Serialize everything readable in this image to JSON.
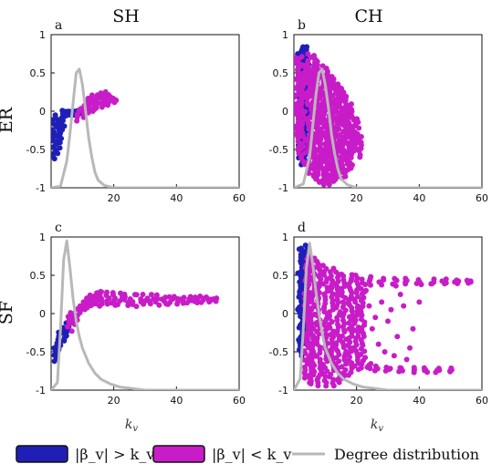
{
  "columns": [
    "SH",
    "CH"
  ],
  "rows": [
    "ER",
    "SF"
  ],
  "x_axis_label": "k_v",
  "legend": [
    {
      "label": "|β_v| > k_v",
      "color": "#1f1fb8",
      "kind": "swatch"
    },
    {
      "label": "|β_v| < k_v",
      "color": "#c81cc8",
      "kind": "swatch"
    },
    {
      "label": "Degree distribution",
      "color": "#b8b8b8",
      "kind": "line"
    }
  ],
  "chart_data": [
    {
      "panel": "a",
      "type": "scatter",
      "network": "ER",
      "model": "SH",
      "xlim": [
        0,
        60
      ],
      "ylim": [
        -1,
        1
      ],
      "x_ticks": [
        20,
        40,
        60
      ],
      "y_ticks": [
        1,
        0.5,
        0,
        -0.5,
        -1
      ],
      "series": [
        {
          "name": "|β_v| > k_v",
          "color": "#1f1fb8",
          "bands": [
            [
              1,
              -0.62,
              -0.12
            ],
            [
              2,
              -0.55,
              -0.05
            ],
            [
              3,
              -0.4,
              0.0
            ],
            [
              4,
              -0.2,
              0.0
            ],
            [
              5,
              -0.05,
              0.0
            ],
            [
              6,
              -0.05,
              0.0
            ],
            [
              7,
              -0.04,
              0.0
            ],
            [
              8,
              -0.04,
              0.0
            ],
            [
              9,
              -0.03,
              0.0
            ]
          ]
        },
        {
          "name": "|β_v| < k_v",
          "color": "#c81cc8",
          "bands": [
            [
              9,
              -0.12,
              0.04
            ],
            [
              10,
              -0.08,
              0.08
            ],
            [
              11,
              -0.04,
              0.12
            ],
            [
              12,
              -0.02,
              0.16
            ],
            [
              13,
              0.0,
              0.2
            ],
            [
              14,
              0.02,
              0.2
            ],
            [
              15,
              0.04,
              0.22
            ],
            [
              16,
              0.06,
              0.24
            ],
            [
              17,
              0.08,
              0.26
            ],
            [
              18,
              0.08,
              0.22
            ],
            [
              19,
              0.1,
              0.18
            ],
            [
              20,
              0.12,
              0.16
            ]
          ]
        },
        {
          "name": "Degree distribution",
          "color": "#b8b8b8",
          "type": "line",
          "points": [
            [
              0,
              -1
            ],
            [
              3,
              -0.98
            ],
            [
              5,
              -0.65
            ],
            [
              6,
              -0.3
            ],
            [
              7,
              0.1
            ],
            [
              8,
              0.5
            ],
            [
              9,
              0.55
            ],
            [
              10,
              0.35
            ],
            [
              11,
              0.0
            ],
            [
              12,
              -0.35
            ],
            [
              13,
              -0.6
            ],
            [
              14,
              -0.8
            ],
            [
              15,
              -0.9
            ],
            [
              17,
              -0.97
            ],
            [
              20,
              -1
            ],
            [
              60,
              -1
            ]
          ]
        }
      ]
    },
    {
      "panel": "b",
      "type": "scatter",
      "network": "ER",
      "model": "CH",
      "xlim": [
        0,
        60
      ],
      "ylim": [
        -1,
        1
      ],
      "x_ticks": [
        20,
        40,
        60
      ],
      "y_ticks": [
        1,
        0.5,
        0,
        -0.5,
        -1
      ],
      "series": [
        {
          "name": "|β_v| > k_v",
          "color": "#1f1fb8",
          "bands": [
            [
              2,
              -0.6,
              0.75
            ],
            [
              3,
              -0.7,
              0.85
            ],
            [
              4,
              -0.5,
              0.85
            ]
          ]
        },
        {
          "name": "|β_v| < k_v",
          "color": "#c81cc8",
          "bands": [
            [
              1,
              -0.35,
              0.7
            ],
            [
              2,
              -0.55,
              0.72
            ],
            [
              3,
              -0.7,
              0.6
            ],
            [
              5,
              -0.8,
              0.75
            ],
            [
              6,
              -0.85,
              0.72
            ],
            [
              7,
              -0.88,
              0.68
            ],
            [
              8,
              -0.92,
              0.65
            ],
            [
              9,
              -0.95,
              0.6
            ],
            [
              10,
              -0.95,
              0.55
            ],
            [
              11,
              -0.95,
              0.5
            ],
            [
              12,
              -0.95,
              0.45
            ],
            [
              13,
              -0.92,
              0.4
            ],
            [
              14,
              -0.9,
              0.35
            ],
            [
              15,
              -0.88,
              0.3
            ],
            [
              16,
              -0.85,
              0.25
            ],
            [
              17,
              -0.8,
              0.2
            ],
            [
              18,
              -0.75,
              0.1
            ],
            [
              19,
              -0.6,
              0.0
            ],
            [
              20,
              -0.5,
              -0.1
            ],
            [
              21,
              -0.6,
              -0.3
            ]
          ]
        },
        {
          "name": "Degree distribution",
          "color": "#b8b8b8",
          "type": "line",
          "points": [
            [
              0,
              -1
            ],
            [
              3,
              -0.95
            ],
            [
              5,
              -0.6
            ],
            [
              6,
              -0.2
            ],
            [
              7,
              0.2
            ],
            [
              8,
              0.5
            ],
            [
              9,
              0.55
            ],
            [
              10,
              0.35
            ],
            [
              11,
              0.05
            ],
            [
              12,
              -0.3
            ],
            [
              13,
              -0.55
            ],
            [
              14,
              -0.75
            ],
            [
              15,
              -0.88
            ],
            [
              17,
              -0.96
            ],
            [
              20,
              -1
            ],
            [
              60,
              -1
            ]
          ]
        }
      ]
    },
    {
      "panel": "c",
      "type": "scatter",
      "network": "SF",
      "model": "SH",
      "xlim": [
        0,
        60
      ],
      "ylim": [
        -1,
        1
      ],
      "x_ticks": [
        20,
        40,
        60
      ],
      "y_ticks": [
        1,
        0.5,
        0,
        -0.5,
        -1
      ],
      "series": [
        {
          "name": "|β_v| > k_v",
          "color": "#1f1fb8",
          "bands": [
            [
              1,
              -0.62,
              -0.45
            ],
            [
              2,
              -0.55,
              -0.38
            ],
            [
              3,
              -0.45,
              -0.25
            ],
            [
              4,
              -0.35,
              -0.18
            ],
            [
              5,
              -0.28,
              -0.12
            ]
          ]
        },
        {
          "name": "|β_v| < k_v",
          "color": "#c81cc8",
          "bands": [
            [
              6,
              -0.22,
              -0.05
            ],
            [
              7,
              -0.15,
              0.0
            ],
            [
              8,
              -0.08,
              0.05
            ],
            [
              9,
              -0.02,
              0.1
            ],
            [
              10,
              0.02,
              0.14
            ],
            [
              11,
              0.05,
              0.18
            ],
            [
              12,
              0.08,
              0.2
            ],
            [
              13,
              0.1,
              0.24
            ],
            [
              14,
              0.12,
              0.26
            ],
            [
              15,
              0.1,
              0.28
            ],
            [
              16,
              0.12,
              0.28
            ],
            [
              18,
              0.12,
              0.28
            ],
            [
              20,
              0.1,
              0.28
            ],
            [
              22,
              0.12,
              0.26
            ],
            [
              24,
              0.1,
              0.26
            ],
            [
              26,
              0.12,
              0.24
            ],
            [
              28,
              0.1,
              0.24
            ],
            [
              30,
              0.12,
              0.24
            ],
            [
              32,
              0.12,
              0.24
            ],
            [
              34,
              0.12,
              0.24
            ],
            [
              36,
              0.12,
              0.22
            ],
            [
              38,
              0.12,
              0.22
            ],
            [
              40,
              0.12,
              0.22
            ],
            [
              42,
              0.14,
              0.22
            ],
            [
              44,
              0.14,
              0.22
            ],
            [
              46,
              0.14,
              0.22
            ],
            [
              48,
              0.15,
              0.22
            ],
            [
              50,
              0.16,
              0.21
            ],
            [
              52,
              0.17,
              0.2
            ]
          ]
        },
        {
          "name": "Degree distribution",
          "color": "#b8b8b8",
          "type": "line",
          "points": [
            [
              0,
              -1
            ],
            [
              2,
              -0.9
            ],
            [
              3,
              -0.2
            ],
            [
              4,
              0.7
            ],
            [
              5,
              0.95
            ],
            [
              6,
              0.6
            ],
            [
              7,
              0.2
            ],
            [
              8,
              -0.1
            ],
            [
              9,
              -0.3
            ],
            [
              10,
              -0.45
            ],
            [
              12,
              -0.65
            ],
            [
              14,
              -0.78
            ],
            [
              16,
              -0.86
            ],
            [
              19,
              -0.92
            ],
            [
              22,
              -0.96
            ],
            [
              26,
              -0.98
            ],
            [
              30,
              -1
            ],
            [
              60,
              -1
            ]
          ]
        }
      ]
    },
    {
      "panel": "d",
      "type": "scatter",
      "network": "SF",
      "model": "CH",
      "xlim": [
        0,
        60
      ],
      "ylim": [
        -1,
        1
      ],
      "x_ticks": [
        20,
        40,
        60
      ],
      "y_ticks": [
        1,
        0.5,
        0,
        -0.5,
        -1
      ],
      "series": [
        {
          "name": "|β_v| > k_v",
          "color": "#1f1fb8",
          "bands": [
            [
              2,
              -0.55,
              0.85
            ],
            [
              3,
              -0.4,
              0.9
            ],
            [
              4,
              -0.3,
              0.85
            ]
          ]
        },
        {
          "name": "|β_v| < k_v",
          "color": "#c81cc8",
          "bands": [
            [
              4,
              -0.85,
              0.75
            ],
            [
              5,
              -0.9,
              0.75
            ],
            [
              6,
              -0.92,
              0.72
            ],
            [
              8,
              -0.95,
              0.68
            ],
            [
              10,
              -0.95,
              0.62
            ],
            [
              12,
              -0.95,
              0.58
            ],
            [
              14,
              -0.9,
              0.55
            ],
            [
              16,
              -0.85,
              0.52
            ],
            [
              18,
              -0.8,
              0.5
            ],
            [
              20,
              -0.72,
              0.5
            ],
            [
              22,
              -0.7,
              0.45
            ],
            [
              24,
              -0.72,
              -0.65
            ],
            [
              26,
              -0.74,
              -0.68
            ],
            [
              30,
              -0.74,
              -0.7
            ],
            [
              34,
              -0.76,
              -0.7
            ],
            [
              38,
              -0.76,
              -0.7
            ],
            [
              42,
              -0.76,
              -0.72
            ],
            [
              46,
              -0.76,
              -0.72
            ],
            [
              50,
              -0.75,
              -0.72
            ]
          ],
          "upper_band": [
            [
              24,
              0.38,
              0.48
            ],
            [
              28,
              0.38,
              0.46
            ],
            [
              32,
              0.36,
              0.46
            ],
            [
              36,
              0.38,
              0.46
            ],
            [
              40,
              0.38,
              0.44
            ],
            [
              44,
              0.38,
              0.44
            ],
            [
              48,
              0.38,
              0.44
            ],
            [
              52,
              0.4,
              0.44
            ],
            [
              56,
              0.4,
              0.44
            ]
          ],
          "scatter": [
            [
              22,
              0.2
            ],
            [
              24,
              0.1
            ],
            [
              26,
              -0.05
            ],
            [
              25,
              -0.2
            ],
            [
              28,
              0.15
            ],
            [
              30,
              -0.1
            ],
            [
              31,
              0.05
            ],
            [
              33,
              -0.3
            ],
            [
              35,
              0.1
            ],
            [
              27,
              -0.4
            ],
            [
              29,
              -0.5
            ],
            [
              32,
              -0.55
            ],
            [
              36,
              -0.6
            ],
            [
              38,
              -0.2
            ],
            [
              40,
              0.15
            ],
            [
              23,
              0.3
            ],
            [
              34,
              0.25
            ],
            [
              37,
              -0.45
            ]
          ]
        },
        {
          "name": "Degree distribution",
          "color": "#b8b8b8",
          "type": "line",
          "points": [
            [
              0,
              -1
            ],
            [
              2,
              -0.85
            ],
            [
              3,
              -0.2
            ],
            [
              4,
              0.6
            ],
            [
              5,
              0.92
            ],
            [
              6,
              0.65
            ],
            [
              7,
              0.3
            ],
            [
              8,
              0.0
            ],
            [
              9,
              -0.25
            ],
            [
              10,
              -0.45
            ],
            [
              12,
              -0.65
            ],
            [
              14,
              -0.78
            ],
            [
              16,
              -0.86
            ],
            [
              19,
              -0.92
            ],
            [
              22,
              -0.96
            ],
            [
              26,
              -0.98
            ],
            [
              30,
              -1
            ],
            [
              60,
              -1
            ]
          ]
        }
      ]
    }
  ]
}
